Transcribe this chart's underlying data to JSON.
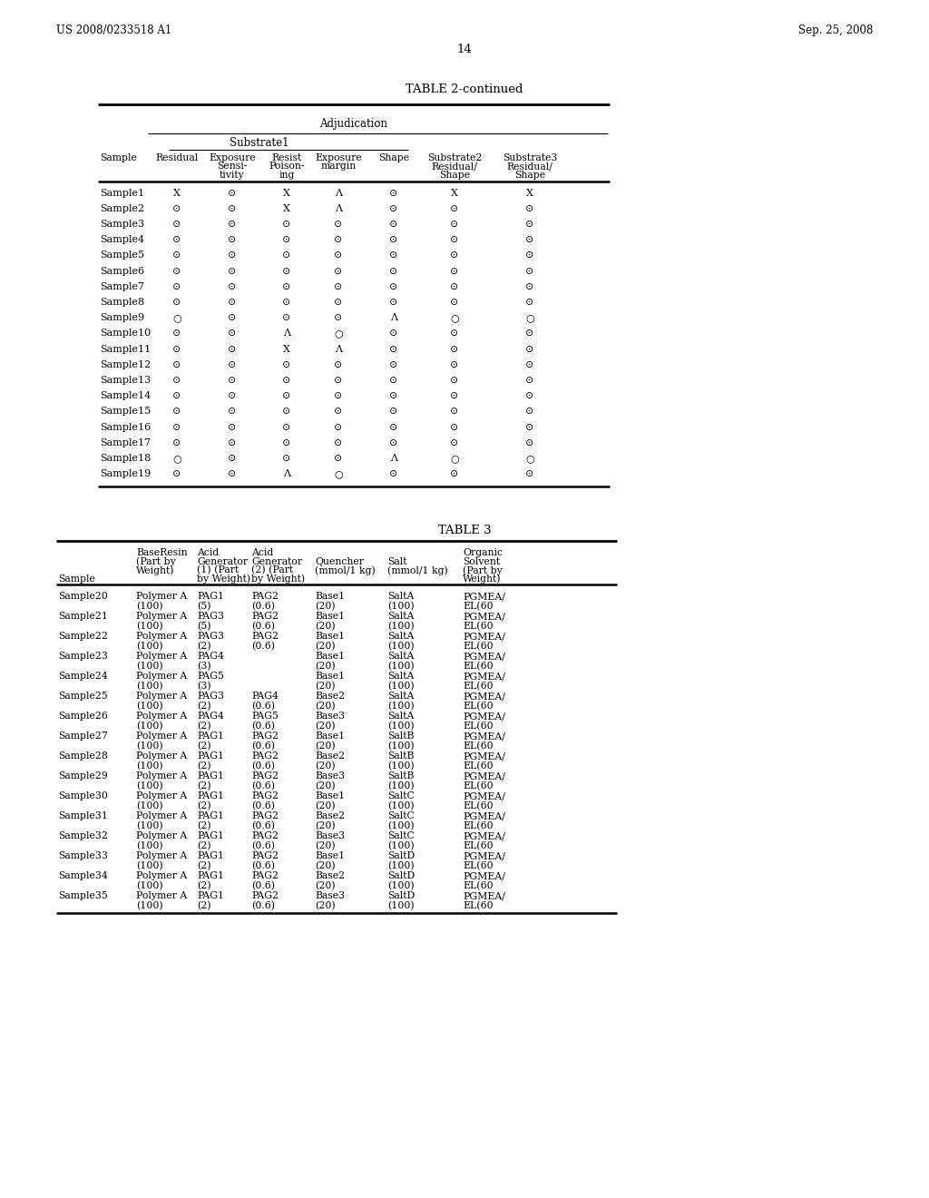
{
  "page_header_left": "US 2008/0233518 A1",
  "page_header_right": "Sep. 25, 2008",
  "page_number": "14",
  "table2_title": "TABLE 2-continued",
  "table2_rows": [
    [
      "Sample1",
      "X",
      "⊙",
      "X",
      "Λ",
      "⊙",
      "X",
      "X"
    ],
    [
      "Sample2",
      "⊙",
      "⊙",
      "X",
      "Λ",
      "⊙",
      "⊙",
      "⊙"
    ],
    [
      "Sample3",
      "⊙",
      "⊙",
      "⊙",
      "⊙",
      "⊙",
      "⊙",
      "⊙"
    ],
    [
      "Sample4",
      "⊙",
      "⊙",
      "⊙",
      "⊙",
      "⊙",
      "⊙",
      "⊙"
    ],
    [
      "Sample5",
      "⊙",
      "⊙",
      "⊙",
      "⊙",
      "⊙",
      "⊙",
      "⊙"
    ],
    [
      "Sample6",
      "⊙",
      "⊙",
      "⊙",
      "⊙",
      "⊙",
      "⊙",
      "⊙"
    ],
    [
      "Sample7",
      "⊙",
      "⊙",
      "⊙",
      "⊙",
      "⊙",
      "⊙",
      "⊙"
    ],
    [
      "Sample8",
      "⊙",
      "⊙",
      "⊙",
      "⊙",
      "⊙",
      "⊙",
      "⊙"
    ],
    [
      "Sample9",
      "○",
      "⊙",
      "⊙",
      "⊙",
      "Λ",
      "○",
      "○"
    ],
    [
      "Sample10",
      "⊙",
      "⊙",
      "Λ",
      "○",
      "⊙",
      "⊙",
      "⊙"
    ],
    [
      "Sample11",
      "⊙",
      "⊙",
      "X",
      "Λ",
      "⊙",
      "⊙",
      "⊙"
    ],
    [
      "Sample12",
      "⊙",
      "⊙",
      "⊙",
      "⊙",
      "⊙",
      "⊙",
      "⊙"
    ],
    [
      "Sample13",
      "⊙",
      "⊙",
      "⊙",
      "⊙",
      "⊙",
      "⊙",
      "⊙"
    ],
    [
      "Sample14",
      "⊙",
      "⊙",
      "⊙",
      "⊙",
      "⊙",
      "⊙",
      "⊙"
    ],
    [
      "Sample15",
      "⊙",
      "⊙",
      "⊙",
      "⊙",
      "⊙",
      "⊙",
      "⊙"
    ],
    [
      "Sample16",
      "⊙",
      "⊙",
      "⊙",
      "⊙",
      "⊙",
      "⊙",
      "⊙"
    ],
    [
      "Sample17",
      "⊙",
      "⊙",
      "⊙",
      "⊙",
      "⊙",
      "⊙",
      "⊙"
    ],
    [
      "Sample18",
      "○",
      "⊙",
      "⊙",
      "⊙",
      "Λ",
      "○",
      "○"
    ],
    [
      "Sample19",
      "⊙",
      "⊙",
      "Λ",
      "○",
      "⊙",
      "⊙",
      "⊙"
    ]
  ],
  "table3_title": "TABLE 3",
  "table3_rows": [
    [
      "Sample20",
      "Polymer A",
      "PAG1",
      "PAG2",
      "Base1",
      "SaltA",
      "PGMEA/"
    ],
    [
      "",
      "(100)",
      "(5)",
      "(0.6)",
      "(20)",
      "(100)",
      "EL(60"
    ],
    [
      "Sample21",
      "Polymer A",
      "PAG3",
      "PAG2",
      "Base1",
      "SaltA",
      "PGMEA/"
    ],
    [
      "",
      "(100)",
      "(5)",
      "(0.6)",
      "(20)",
      "(100)",
      "EL(60"
    ],
    [
      "Sample22",
      "Polymer A",
      "PAG3",
      "PAG2",
      "Base1",
      "SaltA",
      "PGMEA/"
    ],
    [
      "",
      "(100)",
      "(2)",
      "(0.6)",
      "(20)",
      "(100)",
      "EL(60"
    ],
    [
      "Sample23",
      "Polymer A",
      "PAG4",
      "",
      "Base1",
      "SaltA",
      "PGMEA/"
    ],
    [
      "",
      "(100)",
      "(3)",
      "",
      "(20)",
      "(100)",
      "EL(60"
    ],
    [
      "Sample24",
      "Polymer A",
      "PAG5",
      "",
      "Base1",
      "SaltA",
      "PGMEA/"
    ],
    [
      "",
      "(100)",
      "(3)",
      "",
      "(20)",
      "(100)",
      "EL(60"
    ],
    [
      "Sample25",
      "Polymer A",
      "PAG3",
      "PAG4",
      "Base2",
      "SaltA",
      "PGMEA/"
    ],
    [
      "",
      "(100)",
      "(2)",
      "(0.6)",
      "(20)",
      "(100)",
      "EL(60"
    ],
    [
      "Sample26",
      "Polymer A",
      "PAG4",
      "PAG5",
      "Base3",
      "SaltA",
      "PGMEA/"
    ],
    [
      "",
      "(100)",
      "(2)",
      "(0.6)",
      "(20)",
      "(100)",
      "EL(60"
    ],
    [
      "Sample27",
      "Polymer A",
      "PAG1",
      "PAG2",
      "Base1",
      "SaltB",
      "PGMEA/"
    ],
    [
      "",
      "(100)",
      "(2)",
      "(0.6)",
      "(20)",
      "(100)",
      "EL(60"
    ],
    [
      "Sample28",
      "Polymer A",
      "PAG1",
      "PAG2",
      "Base2",
      "SaltB",
      "PGMEA/"
    ],
    [
      "",
      "(100)",
      "(2)",
      "(0.6)",
      "(20)",
      "(100)",
      "EL(60"
    ],
    [
      "Sample29",
      "Polymer A",
      "PAG1",
      "PAG2",
      "Base3",
      "SaltB",
      "PGMEA/"
    ],
    [
      "",
      "(100)",
      "(2)",
      "(0.6)",
      "(20)",
      "(100)",
      "EL(60"
    ],
    [
      "Sample30",
      "Polymer A",
      "PAG1",
      "PAG2",
      "Base1",
      "SaltC",
      "PGMEA/"
    ],
    [
      "",
      "(100)",
      "(2)",
      "(0.6)",
      "(20)",
      "(100)",
      "EL(60"
    ],
    [
      "Sample31",
      "Polymer A",
      "PAG1",
      "PAG2",
      "Base2",
      "SaltC",
      "PGMEA/"
    ],
    [
      "",
      "(100)",
      "(2)",
      "(0.6)",
      "(20)",
      "(100)",
      "EL(60"
    ],
    [
      "Sample32",
      "Polymer A",
      "PAG1",
      "PAG2",
      "Base3",
      "SaltC",
      "PGMEA/"
    ],
    [
      "",
      "(100)",
      "(2)",
      "(0.6)",
      "(20)",
      "(100)",
      "EL(60"
    ],
    [
      "Sample33",
      "Polymer A",
      "PAG1",
      "PAG2",
      "Base1",
      "SaltD",
      "PGMEA/"
    ],
    [
      "",
      "(100)",
      "(2)",
      "(0.6)",
      "(20)",
      "(100)",
      "EL(60"
    ],
    [
      "Sample34",
      "Polymer A",
      "PAG1",
      "PAG2",
      "Base2",
      "SaltD",
      "PGMEA/"
    ],
    [
      "",
      "(100)",
      "(2)",
      "(0.6)",
      "(20)",
      "(100)",
      "EL(60"
    ],
    [
      "Sample35",
      "Polymer A",
      "PAG1",
      "PAG2",
      "Base3",
      "SaltD",
      "PGMEA/"
    ],
    [
      "",
      "(100)",
      "(2)",
      "(0.6)",
      "(20)",
      "(100)",
      "EL(60"
    ]
  ]
}
